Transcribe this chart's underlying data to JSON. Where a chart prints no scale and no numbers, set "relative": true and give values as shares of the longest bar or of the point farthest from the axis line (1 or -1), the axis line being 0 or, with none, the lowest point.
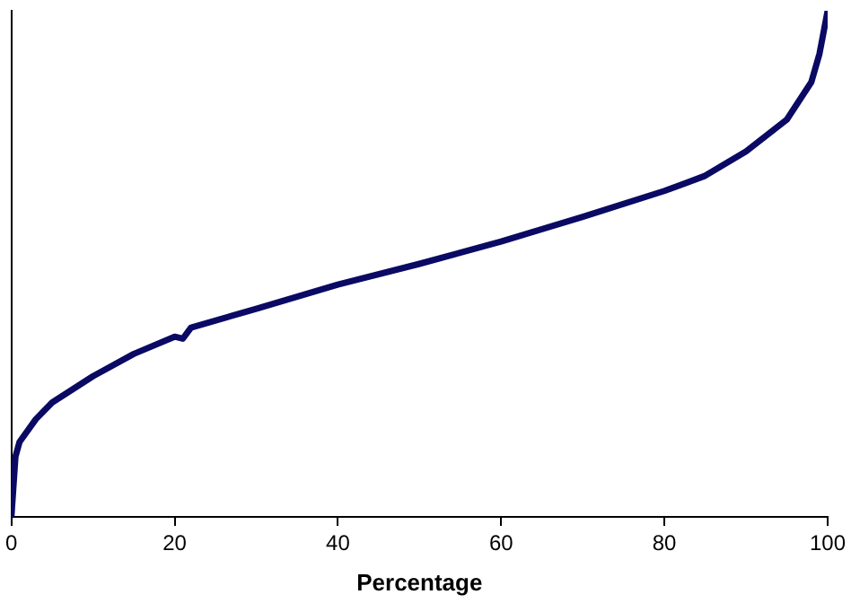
{
  "chart_data": {
    "type": "line",
    "xlabel": "Percentage",
    "relative": true,
    "tick_labels": "x",
    "marker": "none",
    "line_style": "solid",
    "grid": false,
    "legend": false,
    "x": [
      0,
      0.5,
      1,
      3,
      5,
      10,
      15,
      20,
      21,
      22,
      30,
      40,
      50,
      60,
      70,
      80,
      85,
      90,
      95,
      98,
      99,
      100
    ],
    "xlim": [
      0,
      100
    ],
    "xticks": [
      0,
      20,
      40,
      60,
      80,
      100
    ],
    "series": [
      {
        "color": "#0a0a64",
        "values": [
          0,
          0.119,
          0.148,
          0.193,
          0.226,
          0.278,
          0.322,
          0.356,
          0.352,
          0.374,
          0.411,
          0.459,
          0.5,
          0.544,
          0.593,
          0.644,
          0.674,
          0.722,
          0.785,
          0.859,
          0.915,
          1
        ]
      }
    ]
  }
}
